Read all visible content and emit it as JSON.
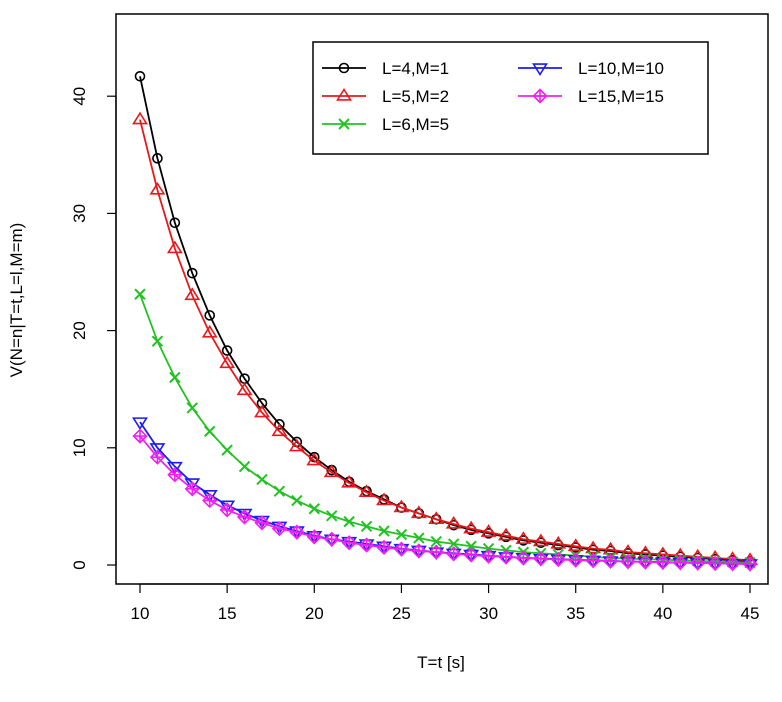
{
  "chart_data": {
    "type": "line",
    "title": "",
    "xlabel": "T=t [s]",
    "ylabel": "V(N=n|T=t,L=l,M=m)",
    "xlim": [
      10,
      45
    ],
    "ylim": [
      0,
      45
    ],
    "xticks": [
      10,
      15,
      20,
      25,
      30,
      35,
      40,
      45
    ],
    "yticks": [
      0,
      10,
      20,
      30,
      40
    ],
    "grid": false,
    "legend_position": "top-right",
    "x": [
      10,
      11,
      12,
      13,
      14,
      15,
      16,
      17,
      18,
      19,
      20,
      21,
      22,
      23,
      24,
      25,
      26,
      27,
      28,
      29,
      30,
      31,
      32,
      33,
      34,
      35,
      36,
      37,
      38,
      39,
      40,
      41,
      42,
      43,
      44,
      45
    ],
    "series": [
      {
        "name": "L=4,M=1",
        "color": "#000000",
        "marker": "circle",
        "values": [
          41.7,
          34.7,
          29.2,
          24.9,
          21.3,
          18.3,
          15.9,
          13.8,
          12.0,
          10.5,
          9.2,
          8.1,
          7.1,
          6.3,
          5.6,
          4.9,
          4.4,
          3.9,
          3.4,
          3.0,
          2.7,
          2.4,
          2.1,
          1.9,
          1.7,
          1.5,
          1.3,
          1.2,
          1.0,
          0.9,
          0.8,
          0.7,
          0.6,
          0.5,
          0.4,
          0.3
        ]
      },
      {
        "name": "L=5,M=2",
        "color": "#e8191c",
        "marker": "triangle-up",
        "values": [
          38.0,
          32.0,
          27.0,
          23.0,
          19.8,
          17.2,
          14.9,
          13.0,
          11.4,
          10.1,
          8.9,
          7.9,
          7.0,
          6.2,
          5.5,
          4.9,
          4.4,
          3.9,
          3.5,
          3.1,
          2.8,
          2.5,
          2.2,
          2.0,
          1.8,
          1.6,
          1.4,
          1.3,
          1.1,
          1.0,
          0.9,
          0.8,
          0.7,
          0.6,
          0.5,
          0.4
        ]
      },
      {
        "name": "L=6,M=5",
        "color": "#22c222",
        "marker": "x",
        "values": [
          23.1,
          19.1,
          16.0,
          13.4,
          11.4,
          9.8,
          8.4,
          7.3,
          6.3,
          5.5,
          4.8,
          4.2,
          3.7,
          3.3,
          2.9,
          2.6,
          2.3,
          2.0,
          1.8,
          1.6,
          1.4,
          1.25,
          1.1,
          1.0,
          0.9,
          0.8,
          0.7,
          0.6,
          0.55,
          0.5,
          0.45,
          0.4,
          0.35,
          0.3,
          0.25,
          0.2
        ]
      },
      {
        "name": "L=10,M=10",
        "color": "#1c1cf0",
        "marker": "triangle-down",
        "values": [
          12.2,
          10.0,
          8.4,
          7.0,
          6.0,
          5.1,
          4.4,
          3.8,
          3.3,
          2.9,
          2.5,
          2.2,
          2.0,
          1.8,
          1.6,
          1.4,
          1.25,
          1.1,
          1.0,
          0.9,
          0.8,
          0.7,
          0.62,
          0.55,
          0.5,
          0.45,
          0.4,
          0.35,
          0.3,
          0.27,
          0.24,
          0.21,
          0.18,
          0.15,
          0.12,
          0.1
        ]
      },
      {
        "name": "L=15,M=15",
        "color": "#f020f0",
        "marker": "diamond-plus",
        "values": [
          11.0,
          9.2,
          7.7,
          6.5,
          5.5,
          4.7,
          4.1,
          3.6,
          3.1,
          2.8,
          2.4,
          2.2,
          1.9,
          1.7,
          1.5,
          1.35,
          1.2,
          1.1,
          0.95,
          0.85,
          0.75,
          0.68,
          0.6,
          0.53,
          0.47,
          0.42,
          0.37,
          0.33,
          0.29,
          0.26,
          0.23,
          0.2,
          0.17,
          0.14,
          0.12,
          0.1
        ]
      }
    ]
  }
}
